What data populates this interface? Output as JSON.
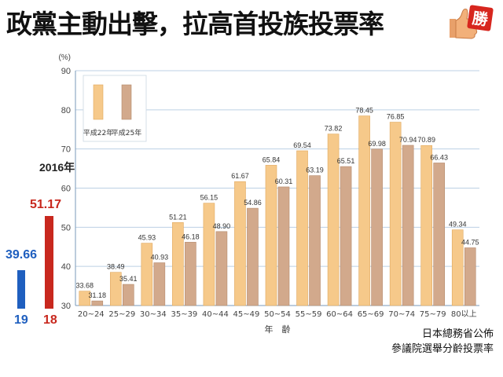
{
  "headline": "政黨主動出擊，拉高首投族投票率",
  "badge": {
    "text": "勝",
    "icon": "thumbs-up-icon"
  },
  "side_panel": {
    "year": "2016年",
    "items": [
      {
        "value": "39.66",
        "age": "19",
        "color": "#1f5fbf"
      },
      {
        "value": "51.17",
        "age": "18",
        "color": "#c8281e"
      }
    ]
  },
  "source": {
    "line1": "日本總務省公佈",
    "line2": "參議院選舉分齡投票率"
  },
  "chart_data": {
    "type": "bar",
    "unit_label": "(%)",
    "xlabel": "年　齢",
    "ylim": [
      30,
      90
    ],
    "yticks": [
      30,
      40,
      50,
      60,
      70,
      80,
      90
    ],
    "grid": true,
    "legend_position": "top-left",
    "categories": [
      "20~24",
      "25~29",
      "30~34",
      "35~39",
      "40~44",
      "45~49",
      "50~54",
      "55~59",
      "60~64",
      "65~69",
      "70~74",
      "75~79",
      "80以上"
    ],
    "series": [
      {
        "name": "平成22年",
        "color": "#f6c98a",
        "values": [
          33.68,
          38.49,
          45.93,
          51.21,
          56.15,
          61.67,
          65.84,
          69.54,
          73.82,
          78.45,
          76.85,
          70.89,
          49.34
        ],
        "labels": [
          "33.68",
          "38.49",
          "45.93",
          "51.21",
          "56.15",
          "61.67",
          "65.84",
          "69.54",
          "73.82",
          "78.45",
          "76.85",
          "70.89",
          "49.34"
        ]
      },
      {
        "name": "平成25年",
        "color": "#d2a98c",
        "values": [
          31.18,
          35.41,
          40.93,
          46.18,
          48.9,
          54.86,
          60.31,
          63.19,
          65.51,
          69.98,
          70.94,
          66.43,
          44.75
        ],
        "labels": [
          "31.18",
          "35.41",
          "40.93",
          "46.18",
          "48.90",
          "54.86",
          "60.31",
          "63.19",
          "65.51",
          "69.98",
          "70.94",
          "66.43",
          "44.75"
        ]
      }
    ]
  }
}
